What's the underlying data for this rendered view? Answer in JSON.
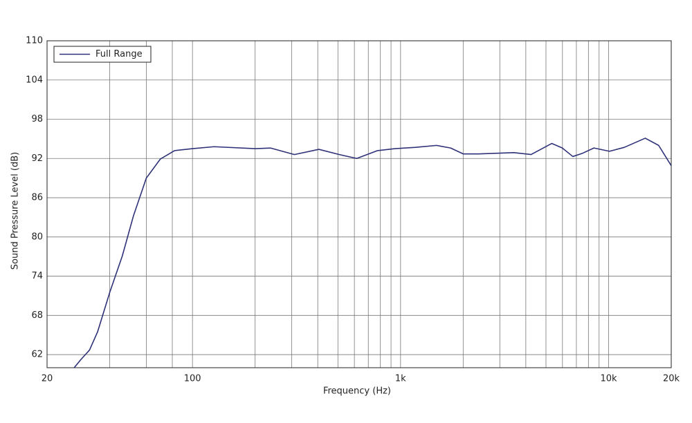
{
  "chart_data": {
    "type": "line",
    "x_label": "Frequency (Hz)",
    "y_label": "Sound Pressure Level (dB)",
    "x_scale": "log",
    "xlim": [
      20,
      20000
    ],
    "ylim": [
      60,
      110
    ],
    "xticks": [
      20,
      100,
      {
        "value": 1000,
        "label": "1k"
      },
      {
        "value": 10000,
        "label": "10k"
      },
      {
        "value": 20000,
        "label": "20k"
      }
    ],
    "x_minor_grid": [
      40,
      60,
      80,
      200,
      300,
      400,
      500,
      600,
      700,
      800,
      900,
      2000,
      3000,
      4000,
      5000,
      6000,
      7000,
      8000,
      9000
    ],
    "yticks": [
      62,
      68,
      74,
      80,
      86,
      92,
      98,
      104,
      110
    ],
    "grid": true,
    "legend": "upper left",
    "x": [
      27,
      29,
      32,
      35,
      40,
      46,
      52,
      60,
      70,
      82,
      100,
      127,
      200,
      237,
      309,
      405,
      508,
      616,
      775,
      940,
      1180,
      1490,
      1740,
      2000,
      2370,
      3500,
      4240,
      5330,
      5990,
      6730,
      7500,
      8500,
      10100,
      11900,
      15000,
      17400,
      20000
    ],
    "series": [
      {
        "name": "Full Range",
        "color": "#2e3178",
        "values": [
          60,
          61.2,
          62.7,
          65.5,
          71.5,
          77.1,
          83.2,
          89,
          91.9,
          93.2,
          93.5,
          93.8,
          93.5,
          93.6,
          92.6,
          93.4,
          92.6,
          92,
          93.2,
          93.5,
          93.7,
          94,
          93.6,
          92.7,
          92.7,
          92.9,
          92.6,
          94.3,
          93.6,
          92.3,
          92.8,
          93.6,
          93.1,
          93.7,
          95.1,
          94,
          90.9
        ]
      }
    ]
  }
}
